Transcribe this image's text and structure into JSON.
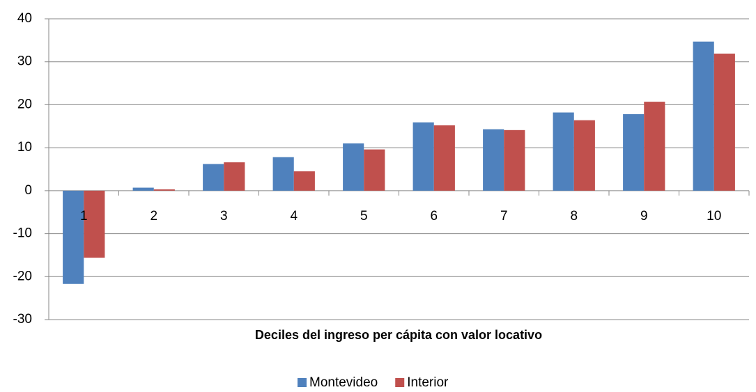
{
  "chart_data": {
    "type": "bar",
    "x_label": "Deciles del ingreso per cápita con valor locativo",
    "categories": [
      "1",
      "2",
      "3",
      "4",
      "5",
      "6",
      "7",
      "8",
      "9",
      "10"
    ],
    "series": [
      {
        "name": "Montevideo",
        "color": "#4f81bd",
        "values": [
          -21.7,
          0.7,
          6.2,
          7.8,
          11.0,
          15.9,
          14.3,
          18.2,
          17.8,
          34.7
        ]
      },
      {
        "name": "Interior",
        "color": "#c0504d",
        "values": [
          -15.6,
          0.3,
          6.6,
          4.5,
          9.6,
          15.2,
          14.1,
          16.4,
          20.7,
          31.9
        ]
      }
    ],
    "ylim": [
      -30,
      40
    ],
    "yticks": [
      -30,
      -20,
      -10,
      0,
      10,
      20,
      30,
      40
    ],
    "grid": true,
    "legend": "bottom"
  }
}
